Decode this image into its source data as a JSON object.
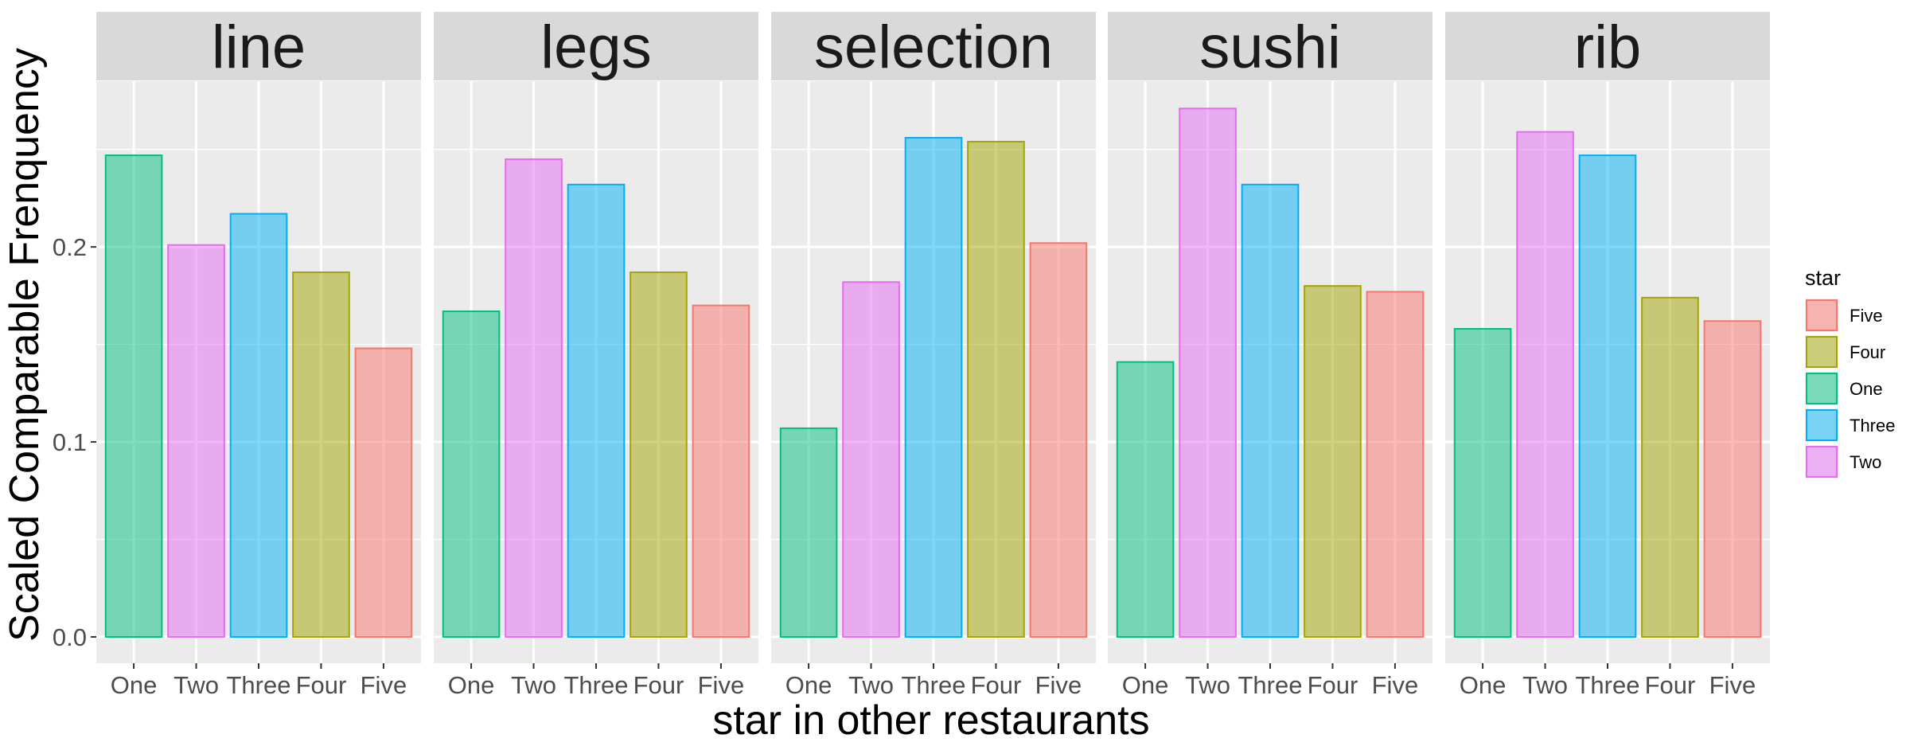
{
  "chart_data": {
    "type": "bar",
    "facets": [
      "line",
      "legs",
      "selection",
      "sushi",
      "rib"
    ],
    "categories": [
      "One",
      "Two",
      "Three",
      "Four",
      "Five"
    ],
    "panels": [
      {
        "facet": "line",
        "values": [
          0.247,
          0.201,
          0.217,
          0.187,
          0.148
        ]
      },
      {
        "facet": "legs",
        "values": [
          0.167,
          0.245,
          0.232,
          0.187,
          0.17
        ]
      },
      {
        "facet": "selection",
        "values": [
          0.107,
          0.182,
          0.256,
          0.254,
          0.202
        ]
      },
      {
        "facet": "sushi",
        "values": [
          0.141,
          0.271,
          0.232,
          0.18,
          0.177
        ]
      },
      {
        "facet": "rib",
        "values": [
          0.158,
          0.259,
          0.247,
          0.174,
          0.162
        ]
      }
    ],
    "xlabel": "star in other restaurants",
    "ylabel": "Scaled Comparable Frenquency",
    "ylim": [
      -0.0135,
      0.285
    ],
    "yticks": [
      0.0,
      0.1,
      0.2
    ],
    "ytick_labels": [
      "0.0",
      "0.1",
      "0.2"
    ],
    "grid": true,
    "legend": {
      "title": "star",
      "position": "right",
      "entries": [
        {
          "label": "Five",
          "color": "#F8766D"
        },
        {
          "label": "Four",
          "color": "#A3A500"
        },
        {
          "label": "One",
          "color": "#00BF7D"
        },
        {
          "label": "Three",
          "color": "#00B0F6"
        },
        {
          "label": "Two",
          "color": "#E76BF3"
        }
      ]
    },
    "category_colors": {
      "One": "#00BF7D",
      "Two": "#E76BF3",
      "Three": "#00B0F6",
      "Four": "#A3A500",
      "Five": "#F8766D"
    },
    "bar_alpha": 0.5
  }
}
